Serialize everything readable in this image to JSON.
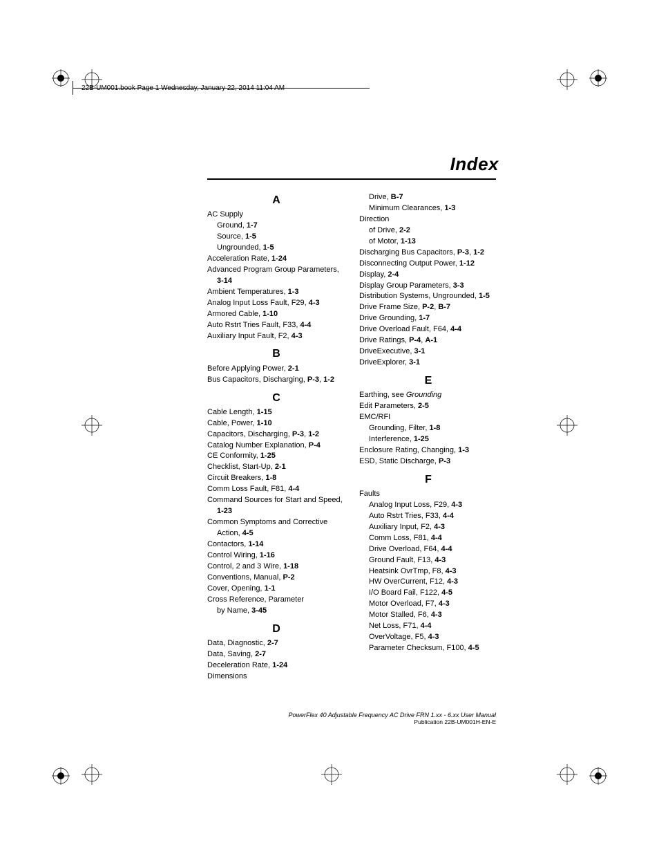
{
  "header": "22B-UM001.book  Page 1  Wednesday, January 22, 2014  11:04 AM",
  "title": "Index",
  "footer_line1": "PowerFlex 40 Adjustable Frequency AC Drive FRN 1.xx - 6.xx User Manual",
  "footer_line2": "Publication 22B-UM001H-EN-E",
  "colors": {
    "text": "#000000",
    "bg": "#ffffff"
  },
  "index": {
    "col1": [
      {
        "letter": "A"
      },
      {
        "t": "AC Supply"
      },
      {
        "t": "Ground, ",
        "b": "1-7",
        "sub": true
      },
      {
        "t": "Source, ",
        "b": "1-5",
        "sub": true
      },
      {
        "t": "Ungrounded, ",
        "b": "1-5",
        "sub": true
      },
      {
        "t": "Acceleration Rate, ",
        "b": "1-24"
      },
      {
        "t": "Advanced Program Group Parameters, ",
        "b": "3-14",
        "hang": true
      },
      {
        "t": "Ambient Temperatures, ",
        "b": "1-3"
      },
      {
        "t": "Analog Input Loss Fault, F29, ",
        "b": "4-3"
      },
      {
        "t": "Armored Cable, ",
        "b": "1-10"
      },
      {
        "t": "Auto Rstrt Tries Fault, F33, ",
        "b": "4-4"
      },
      {
        "t": "Auxiliary Input Fault, F2, ",
        "b": "4-3"
      },
      {
        "letter": "B"
      },
      {
        "t": "Before Applying Power, ",
        "b": "2-1"
      },
      {
        "t": "Bus Capacitors, Discharging, ",
        "b": "P-3",
        "t2": ", ",
        "b2": "1-2"
      },
      {
        "letter": "C"
      },
      {
        "t": "Cable Length, ",
        "b": "1-15"
      },
      {
        "t": "Cable, Power, ",
        "b": "1-10"
      },
      {
        "t": "Capacitors, Discharging, ",
        "b": "P-3",
        "t2": ", ",
        "b2": "1-2"
      },
      {
        "t": "Catalog Number Explanation, ",
        "b": "P-4"
      },
      {
        "t": "CE Conformity, ",
        "b": "1-25"
      },
      {
        "t": "Checklist, Start-Up, ",
        "b": "2-1"
      },
      {
        "t": "Circuit Breakers, ",
        "b": "1-8"
      },
      {
        "t": "Comm Loss Fault, F81, ",
        "b": "4-4"
      },
      {
        "t": "Command Sources for Start and Speed, ",
        "b": "1-23",
        "hang": true
      },
      {
        "t": "Common Symptoms and Corrective Action, ",
        "b": "4-5",
        "hang": true
      },
      {
        "t": "Contactors, ",
        "b": "1-14"
      },
      {
        "t": "Control Wiring, ",
        "b": "1-16"
      },
      {
        "t": "Control, 2 and 3 Wire, ",
        "b": "1-18"
      },
      {
        "t": "Conventions, Manual, ",
        "b": "P-2"
      },
      {
        "t": "Cover, Opening, ",
        "b": "1-1"
      },
      {
        "t": "Cross Reference, Parameter"
      },
      {
        "t": "by Name, ",
        "b": "3-45",
        "sub": true
      },
      {
        "letter": "D"
      },
      {
        "t": "Data, Diagnostic, ",
        "b": "2-7"
      },
      {
        "t": "Data, Saving, ",
        "b": "2-7"
      },
      {
        "t": "Deceleration Rate, ",
        "b": "1-24"
      },
      {
        "t": "Dimensions"
      }
    ],
    "col2": [
      {
        "t": "Drive, ",
        "b": "B-7",
        "sub": true
      },
      {
        "t": "Minimum Clearances, ",
        "b": "1-3",
        "sub": true
      },
      {
        "t": "Direction"
      },
      {
        "t": "of Drive, ",
        "b": "2-2",
        "sub": true
      },
      {
        "t": "of Motor, ",
        "b": "1-13",
        "sub": true
      },
      {
        "t": "Discharging Bus Capacitors, ",
        "b": "P-3",
        "t2": ", ",
        "b2": "1-2"
      },
      {
        "t": "Disconnecting Output Power, ",
        "b": "1-12"
      },
      {
        "t": "Display, ",
        "b": "2-4"
      },
      {
        "t": "Display Group Parameters, ",
        "b": "3-3"
      },
      {
        "t": "Distribution Systems, Ungrounded, ",
        "b": "1-5",
        "hang": true
      },
      {
        "t": "Drive Frame Size, ",
        "b": "P-2",
        "t2": ", ",
        "b2": "B-7"
      },
      {
        "t": "Drive Grounding, ",
        "b": "1-7"
      },
      {
        "t": "Drive Overload Fault, F64, ",
        "b": "4-4"
      },
      {
        "t": "Drive Ratings, ",
        "b": "P-4",
        "t2": ", ",
        "b2": "A-1"
      },
      {
        "t": "DriveExecutive, ",
        "b": "3-1"
      },
      {
        "t": "DriveExplorer, ",
        "b": "3-1"
      },
      {
        "letter": "E"
      },
      {
        "t": "Earthing, see ",
        "i": "Grounding"
      },
      {
        "t": "Edit Parameters, ",
        "b": "2-5"
      },
      {
        "t": "EMC/RFI"
      },
      {
        "t": "Grounding, Filter, ",
        "b": "1-8",
        "sub": true
      },
      {
        "t": "Interference, ",
        "b": "1-25",
        "sub": true
      },
      {
        "t": "Enclosure Rating, Changing, ",
        "b": "1-3"
      },
      {
        "t": "ESD, Static Discharge, ",
        "b": "P-3"
      },
      {
        "letter": "F"
      },
      {
        "t": "Faults"
      },
      {
        "t": "Analog Input Loss, F29, ",
        "b": "4-3",
        "sub": true
      },
      {
        "t": "Auto Rstrt Tries, F33, ",
        "b": "4-4",
        "sub": true
      },
      {
        "t": "Auxiliary Input, F2, ",
        "b": "4-3",
        "sub": true
      },
      {
        "t": "Comm Loss, F81, ",
        "b": "4-4",
        "sub": true
      },
      {
        "t": "Drive Overload, F64, ",
        "b": "4-4",
        "sub": true
      },
      {
        "t": "Ground Fault, F13, ",
        "b": "4-3",
        "sub": true
      },
      {
        "t": "Heatsink OvrTmp, F8, ",
        "b": "4-3",
        "sub": true
      },
      {
        "t": "HW OverCurrent, F12, ",
        "b": "4-3",
        "sub": true
      },
      {
        "t": "I/O Board Fail, F122, ",
        "b": "4-5",
        "sub": true
      },
      {
        "t": "Motor Overload, F7, ",
        "b": "4-3",
        "sub": true
      },
      {
        "t": "Motor Stalled, F6, ",
        "b": "4-3",
        "sub": true
      },
      {
        "t": "Net Loss, F71, ",
        "b": "4-4",
        "sub": true
      },
      {
        "t": "OverVoltage, F5, ",
        "b": "4-3",
        "sub": true
      },
      {
        "t": "Parameter Checksum, F100, ",
        "b": "4-5",
        "sub": true
      }
    ]
  }
}
